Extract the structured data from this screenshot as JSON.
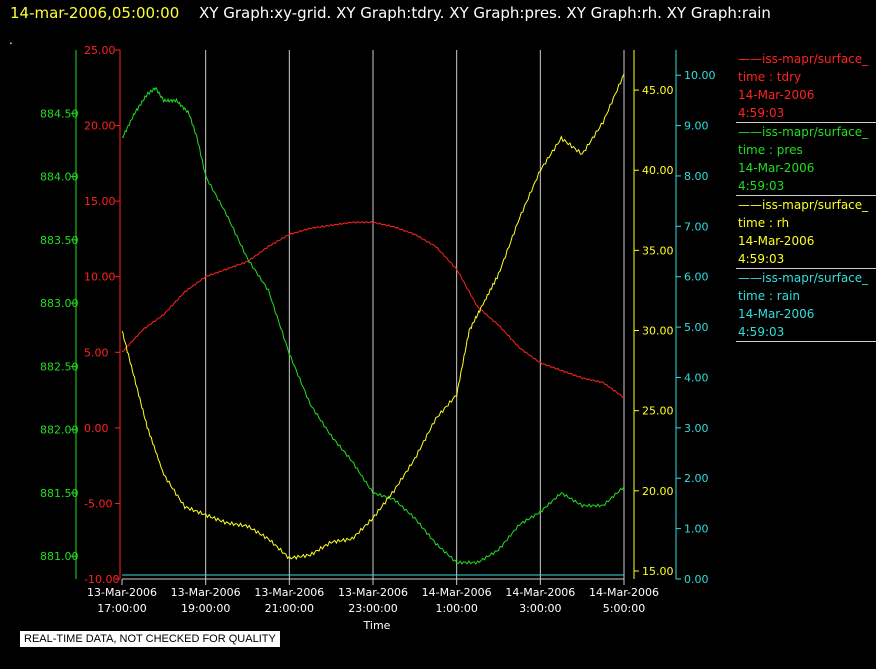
{
  "header": {
    "timestamp": "14-mar-2006,05:00:00",
    "title": "XY Graph:xy-grid.  XY Graph:tdry.  XY Graph:pres.  XY Graph:rh.  XY Graph:rain"
  },
  "dot": ".",
  "disclaimer": "REAL-TIME DATA, NOT CHECKED FOR QUALITY",
  "colors": {
    "tdry": "#ff2222",
    "pres": "#22dd22",
    "rh": "#ffff22",
    "rain": "#33dddd",
    "grid": "#cccccc"
  },
  "legend": [
    {
      "name": "——iss-mapr/surface_",
      "field": "time : tdry",
      "date": "14-Mar-2006",
      "time": "4:59:03",
      "color": "#ff2222"
    },
    {
      "name": "——iss-mapr/surface_",
      "field": "time : pres",
      "date": "14-Mar-2006",
      "time": "4:59:03",
      "color": "#22dd22"
    },
    {
      "name": "——iss-mapr/surface_",
      "field": "time : rh",
      "date": "14-Mar-2006",
      "time": "4:59:03",
      "color": "#ffff22"
    },
    {
      "name": "——iss-mapr/surface_",
      "field": "time : rain",
      "date": "14-Mar-2006",
      "time": "4:59:03",
      "color": "#33dddd"
    }
  ],
  "chart_data": {
    "type": "line",
    "xlabel": "Time",
    "x_ticks": [
      {
        "hours": 17,
        "date": "13-Mar-2006",
        "time": "17:00:00"
      },
      {
        "hours": 19,
        "date": "13-Mar-2006",
        "time": "19:00:00"
      },
      {
        "hours": 21,
        "date": "13-Mar-2006",
        "time": "21:00:00"
      },
      {
        "hours": 23,
        "date": "13-Mar-2006",
        "time": "23:00:00"
      },
      {
        "hours": 25,
        "date": "14-Mar-2006",
        "time": "1:00:00"
      },
      {
        "hours": 27,
        "date": "14-Mar-2006",
        "time": "3:00:00"
      },
      {
        "hours": 29,
        "date": "14-Mar-2006",
        "time": "5:00:00"
      }
    ],
    "xlim": [
      17,
      29
    ],
    "grid": true,
    "axes": {
      "tdry": {
        "ylim": [
          -10,
          25
        ],
        "ticks": [
          "25.00",
          "20.00",
          "15.00",
          "10.00",
          "5.00",
          "0.00",
          "-5.00",
          "-10.00"
        ]
      },
      "pres": {
        "ylim": [
          880.82,
          885.0
        ],
        "ticks": [
          "884.50",
          "884.00",
          "883.50",
          "883.00",
          "882.50",
          "882.00",
          "881.50",
          "881.00"
        ]
      },
      "rh": {
        "ylim": [
          14.5,
          47.5
        ],
        "ticks": [
          "45.00",
          "40.00",
          "35.00",
          "30.00",
          "25.00",
          "20.00",
          "15.00"
        ]
      },
      "rain": {
        "ylim": [
          0,
          10.5
        ],
        "ticks": [
          "10.00",
          "9.00",
          "8.00",
          "7.00",
          "6.00",
          "5.00",
          "4.00",
          "3.00",
          "2.00",
          "1.00",
          "0.00"
        ]
      }
    },
    "series": [
      {
        "key": "tdry",
        "x": [
          17,
          17.5,
          18,
          18.5,
          19,
          19.5,
          20,
          20.5,
          21,
          21.5,
          22,
          22.5,
          23,
          23.5,
          24,
          24.5,
          25,
          25.5,
          26,
          26.5,
          27,
          27.5,
          28,
          28.5,
          29
        ],
        "values": [
          5.0,
          6.5,
          7.5,
          9.0,
          10.0,
          10.5,
          11.0,
          12.0,
          12.8,
          13.2,
          13.4,
          13.6,
          13.6,
          13.3,
          12.8,
          12.0,
          10.5,
          8.0,
          6.8,
          5.3,
          4.3,
          3.8,
          3.3,
          3.0,
          2.0
        ]
      },
      {
        "key": "pres",
        "x": [
          17,
          17.3,
          17.6,
          17.8,
          18,
          18.3,
          18.6,
          18.8,
          19,
          19.5,
          20,
          20.5,
          21,
          21.5,
          22,
          22.5,
          23,
          23.5,
          24,
          24.5,
          25,
          25.5,
          26,
          26.5,
          27,
          27.5,
          28,
          28.5,
          29
        ],
        "values": [
          884.3,
          884.5,
          884.65,
          884.7,
          884.6,
          884.6,
          884.5,
          884.3,
          884.0,
          883.7,
          883.35,
          883.1,
          882.6,
          882.2,
          881.95,
          881.75,
          881.5,
          881.45,
          881.3,
          881.1,
          880.95,
          880.95,
          881.05,
          881.25,
          881.35,
          881.5,
          881.4,
          881.4,
          881.55
        ]
      },
      {
        "key": "rh",
        "x": [
          17,
          17.3,
          17.6,
          18,
          18.5,
          19,
          19.5,
          20,
          20.5,
          21,
          21.5,
          22,
          22.5,
          23,
          23.5,
          24,
          24.5,
          25,
          25.3,
          25.6,
          26,
          26.5,
          27,
          27.5,
          28,
          28.5,
          29
        ],
        "values": [
          30.0,
          27.0,
          24.0,
          21.0,
          19.0,
          18.5,
          18.0,
          17.8,
          17.0,
          15.8,
          16.0,
          16.8,
          17.0,
          18.3,
          20.0,
          22.0,
          24.5,
          26.0,
          30.0,
          31.5,
          33.5,
          37.0,
          40.0,
          42.0,
          41.0,
          43.0,
          46.0
        ]
      },
      {
        "key": "rain",
        "x": [
          17,
          29
        ],
        "values": [
          0.0,
          0.0
        ]
      }
    ]
  }
}
